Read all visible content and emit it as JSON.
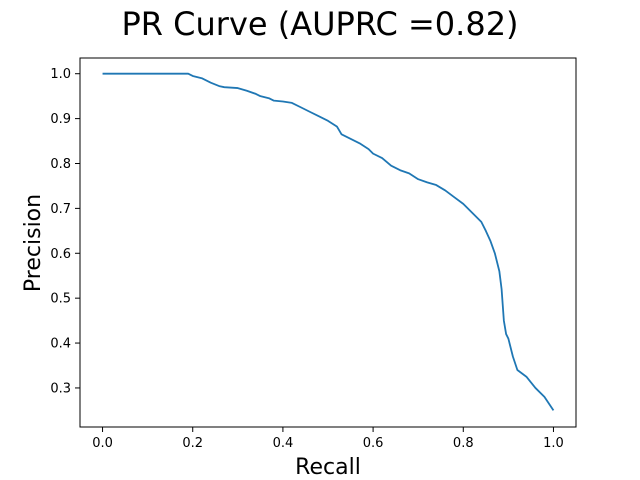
{
  "chart_data": {
    "type": "line",
    "title": "PR Curve (AUPRC =0.82)",
    "xlabel": "Recall",
    "ylabel": "Precision",
    "xlim": [
      -0.05,
      1.05
    ],
    "ylim": [
      0.213,
      1.035
    ],
    "xticks": [
      0.0,
      0.2,
      0.4,
      0.6,
      0.8,
      1.0
    ],
    "yticks": [
      0.3,
      0.4,
      0.5,
      0.6,
      0.7,
      0.8,
      0.9,
      1.0
    ],
    "grid": false,
    "series": [
      {
        "color": "#1f77b4",
        "x": [
          0.0,
          0.05,
          0.1,
          0.15,
          0.19,
          0.2,
          0.22,
          0.24,
          0.26,
          0.27,
          0.3,
          0.32,
          0.34,
          0.35,
          0.37,
          0.38,
          0.4,
          0.42,
          0.44,
          0.46,
          0.48,
          0.5,
          0.52,
          0.53,
          0.55,
          0.57,
          0.59,
          0.6,
          0.62,
          0.64,
          0.66,
          0.68,
          0.7,
          0.72,
          0.74,
          0.76,
          0.78,
          0.8,
          0.82,
          0.84,
          0.85,
          0.86,
          0.87,
          0.88,
          0.885,
          0.89,
          0.895,
          0.9,
          0.91,
          0.92,
          0.94,
          0.96,
          0.98,
          1.0
        ],
        "y": [
          1.0,
          1.0,
          1.0,
          1.0,
          1.0,
          0.995,
          0.99,
          0.98,
          0.972,
          0.97,
          0.968,
          0.962,
          0.955,
          0.95,
          0.945,
          0.94,
          0.938,
          0.935,
          0.925,
          0.915,
          0.905,
          0.895,
          0.882,
          0.865,
          0.855,
          0.845,
          0.832,
          0.822,
          0.812,
          0.795,
          0.785,
          0.778,
          0.765,
          0.758,
          0.752,
          0.74,
          0.725,
          0.71,
          0.69,
          0.67,
          0.65,
          0.628,
          0.6,
          0.56,
          0.52,
          0.45,
          0.42,
          0.41,
          0.37,
          0.34,
          0.325,
          0.3,
          0.28,
          0.25
        ]
      }
    ]
  }
}
